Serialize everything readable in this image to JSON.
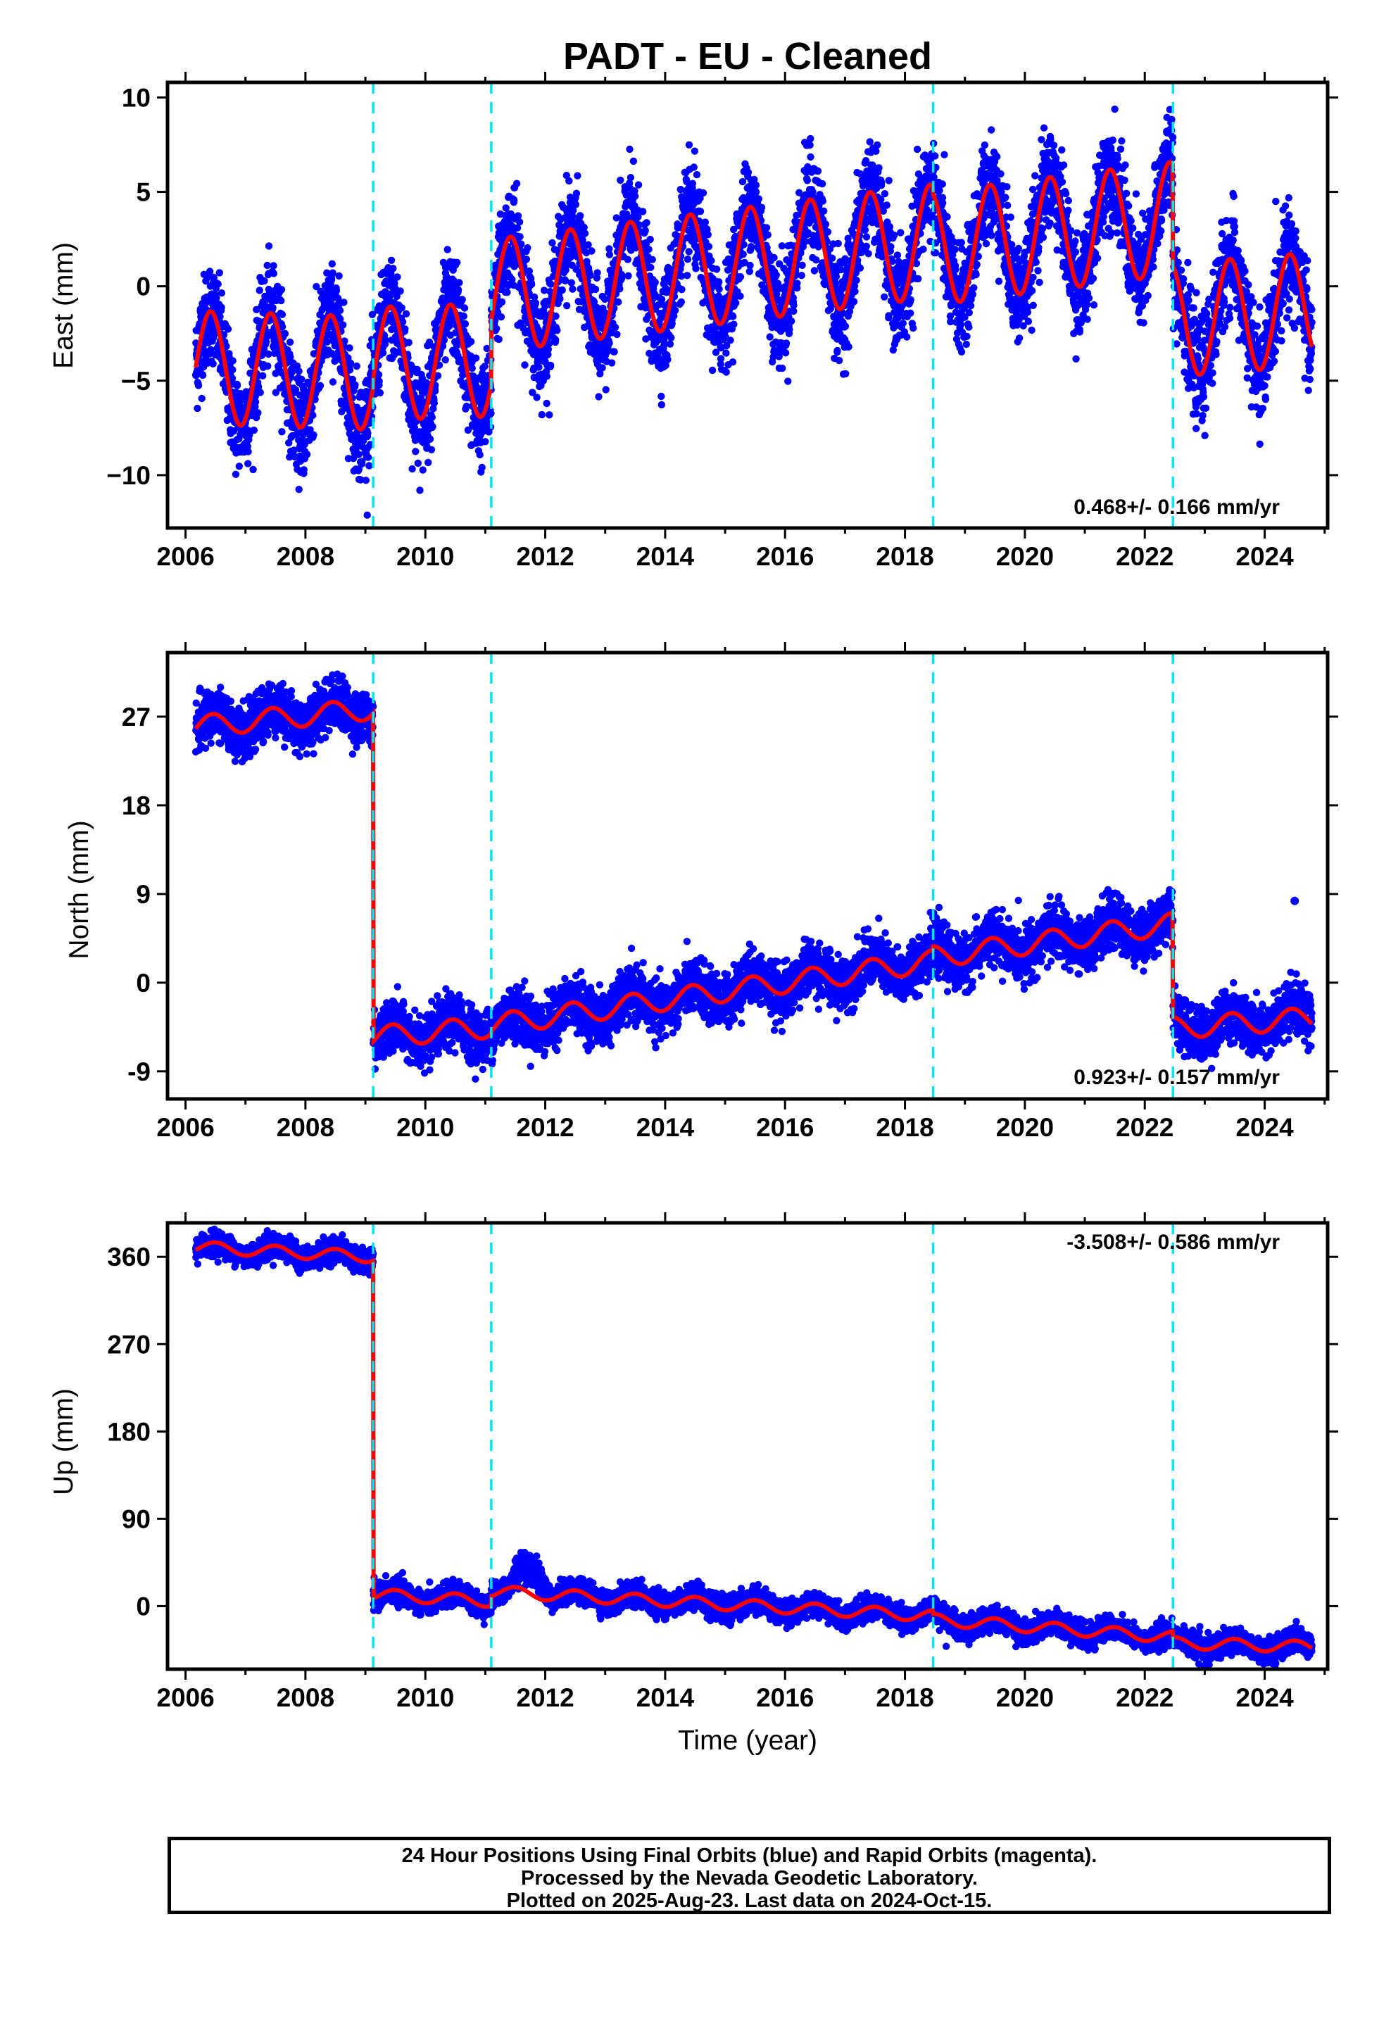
{
  "title": "PADT  - EU - Cleaned",
  "x_label": "Time (year)",
  "footer": [
    "24 Hour Positions Using Final Orbits (blue) and Rapid Orbits (magenta).",
    "Processed by the Nevada Geodetic Laboratory.",
    "Plotted on 2025-Aug-23. Last data on 2024-Oct-15."
  ],
  "colors": {
    "data_points": "#0000ff",
    "model_fit": "#ff0000",
    "offset_lines": "#00e5ee",
    "frame": "#000000"
  },
  "chart_data": [
    {
      "type": "scatter",
      "panel": "East",
      "ylabel": "East (mm)",
      "xlim": [
        2005.7,
        2025.05
      ],
      "ylim": [
        -12.8,
        10.8
      ],
      "xticks": [
        "2006",
        "2008",
        "2010",
        "2012",
        "2014",
        "2016",
        "2018",
        "2020",
        "2022",
        "2024"
      ],
      "yticks": [
        "10",
        "5",
        "0",
        "−5",
        "−10"
      ],
      "ytick_values": [
        10,
        5,
        0,
        -5,
        -10
      ],
      "rate_text": "0.468+/- 0.166 mm/yr",
      "rate_position": "bottom-right",
      "offset_epochs": [
        2009.13,
        2011.1,
        2018.47,
        2022.47
      ],
      "data_range": [
        2006.17,
        2024.79
      ],
      "model": {
        "segments": [
          {
            "start": 2006.17,
            "end": 2009.13,
            "level_start": -4.3,
            "level_end": -4.6
          },
          {
            "start": 2009.13,
            "end": 2011.1,
            "level_start": -4.1,
            "level_end": -3.9
          },
          {
            "start": 2011.1,
            "end": 2018.47,
            "level_start": -0.5,
            "level_end": 2.4
          },
          {
            "start": 2018.47,
            "end": 2022.47,
            "level_start": 2.0,
            "level_end": 3.6
          },
          {
            "start": 2022.47,
            "end": 2024.79,
            "level_start": -1.8,
            "level_end": -1.2
          }
        ],
        "annual_amplitude": 3.0,
        "annual_phase_peak": 0.42,
        "noise": 1.3
      }
    },
    {
      "type": "scatter",
      "panel": "North",
      "ylabel": "North (mm)",
      "xlim": [
        2005.7,
        2025.05
      ],
      "ylim": [
        -11.8,
        33.5
      ],
      "xticks": [
        "2006",
        "2008",
        "2010",
        "2012",
        "2014",
        "2016",
        "2018",
        "2020",
        "2022",
        "2024"
      ],
      "yticks": [
        "27",
        "18",
        "9",
        "0",
        "-9"
      ],
      "ytick_values": [
        27,
        18,
        9,
        0,
        -9
      ],
      "rate_text": "0.923+/- 0.157 mm/yr",
      "rate_position": "bottom-right",
      "offset_epochs": [
        2009.13,
        2011.1,
        2018.47,
        2022.47
      ],
      "data_range": [
        2006.17,
        2024.79
      ],
      "model": {
        "segments": [
          {
            "start": 2006.17,
            "end": 2009.13,
            "level_start": 26.0,
            "level_end": 27.8
          },
          {
            "start": 2009.13,
            "end": 2011.1,
            "level_start": -5.5,
            "level_end": -4.5
          },
          {
            "start": 2011.1,
            "end": 2018.47,
            "level_start": -4.3,
            "level_end": 2.2
          },
          {
            "start": 2018.47,
            "end": 2022.47,
            "level_start": 2.6,
            "level_end": 6.0
          },
          {
            "start": 2022.47,
            "end": 2024.79,
            "level_start": -4.6,
            "level_end": -3.6
          }
        ],
        "annual_amplitude": 1.1,
        "annual_phase_peak": 0.45,
        "noise": 1.3,
        "outliers": [
          {
            "x": 2024.5,
            "y": 8.3
          }
        ]
      }
    },
    {
      "type": "scatter",
      "panel": "Up",
      "ylabel": "Up (mm)",
      "xlim": [
        2005.7,
        2025.05
      ],
      "ylim": [
        -65,
        395
      ],
      "xticks": [
        "2006",
        "2008",
        "2010",
        "2012",
        "2014",
        "2016",
        "2018",
        "2020",
        "2022",
        "2024"
      ],
      "yticks": [
        "360",
        "270",
        "180",
        "90",
        "0"
      ],
      "ytick_values": [
        360,
        270,
        180,
        90,
        0
      ],
      "rate_text": "-3.508+/- 0.586 mm/yr",
      "rate_position": "top-right",
      "offset_epochs": [
        2009.13,
        2011.1,
        2018.47,
        2022.47
      ],
      "data_range": [
        2006.17,
        2024.79
      ],
      "model": {
        "segments": [
          {
            "start": 2006.17,
            "end": 2009.13,
            "level_start": 370,
            "level_end": 360
          },
          {
            "start": 2009.13,
            "end": 2011.1,
            "level_start": 12,
            "level_end": 5
          },
          {
            "start": 2011.1,
            "end": 2018.47,
            "level_start": 15,
            "level_end": -10
          },
          {
            "start": 2018.47,
            "end": 2022.47,
            "level_start": -14,
            "level_end": -32
          },
          {
            "start": 2022.47,
            "end": 2024.79,
            "level_start": -38,
            "level_end": -42
          }
        ],
        "annual_amplitude": 6,
        "annual_phase_peak": 0.5,
        "noise": 6,
        "transient": {
          "start": 2011.4,
          "end": 2012.1,
          "height": 35
        }
      }
    }
  ]
}
